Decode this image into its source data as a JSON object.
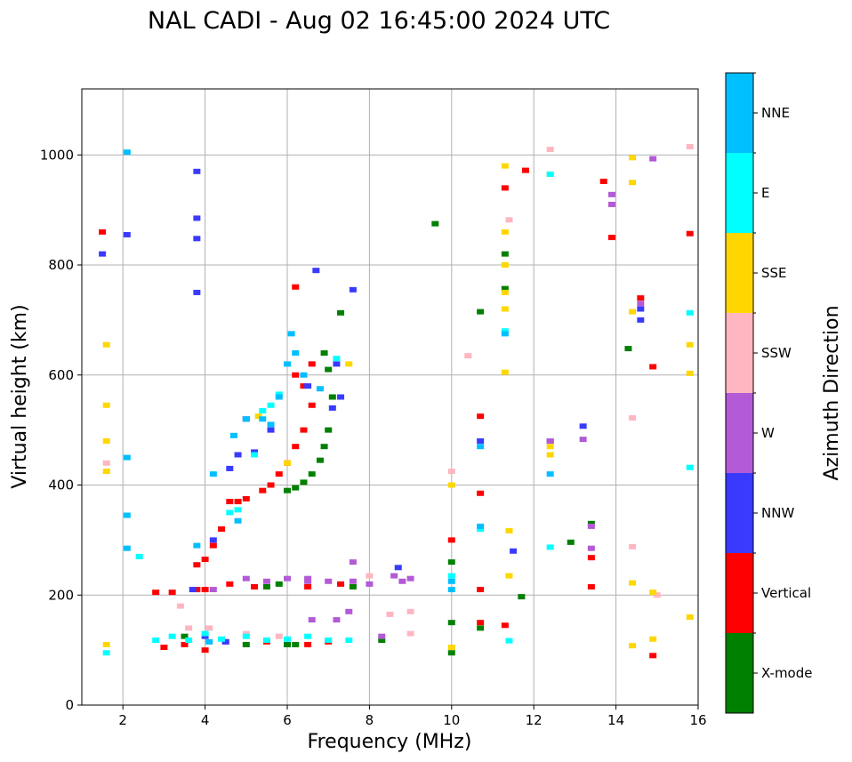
{
  "chart_data": {
    "type": "scatter",
    "title": "NAL CADI - Aug 02 16:45:00 2024 UTC",
    "xlabel": "Frequency (MHz)",
    "ylabel": "Virtual height (km)",
    "xlim": [
      1.0,
      16.0
    ],
    "ylim": [
      0,
      1120
    ],
    "xticks": [
      2,
      4,
      6,
      8,
      10,
      12,
      14,
      16
    ],
    "yticks": [
      0,
      200,
      400,
      600,
      800,
      1000
    ],
    "grid": true,
    "colorbar": {
      "title": "Azimuth Direction",
      "categories": [
        {
          "name": "X-mode",
          "color": "#008000"
        },
        {
          "name": "Vertical",
          "color": "#ff0000"
        },
        {
          "name": "NNW",
          "color": "#3a3aff"
        },
        {
          "name": "W",
          "color": "#b35ad6"
        },
        {
          "name": "SSW",
          "color": "#ffb6c1"
        },
        {
          "name": "SSE",
          "color": "#ffd700"
        },
        {
          "name": "E",
          "color": "#00ffff"
        },
        {
          "name": "NNE",
          "color": "#00bfff"
        }
      ]
    },
    "series": [
      {
        "name": "X-mode",
        "points": [
          [
            6.0,
            390
          ],
          [
            6.2,
            395
          ],
          [
            6.4,
            405
          ],
          [
            6.6,
            420
          ],
          [
            6.8,
            445
          ],
          [
            6.9,
            470
          ],
          [
            7.0,
            500
          ],
          [
            7.1,
            560
          ],
          [
            7.0,
            610
          ],
          [
            6.9,
            640
          ],
          [
            5.5,
            215
          ],
          [
            5.8,
            220
          ],
          [
            6.0,
            110
          ],
          [
            6.2,
            110
          ],
          [
            5.0,
            110
          ],
          [
            3.5,
            125
          ],
          [
            10.0,
            95
          ],
          [
            10.0,
            150
          ],
          [
            10.7,
            140
          ],
          [
            10.7,
            715
          ],
          [
            11.3,
            820
          ],
          [
            11.3,
            757
          ],
          [
            7.3,
            713
          ],
          [
            12.9,
            296
          ],
          [
            13.4,
            330
          ],
          [
            14.3,
            648
          ],
          [
            9.6,
            875
          ],
          [
            11.7,
            197
          ],
          [
            10.0,
            260
          ],
          [
            7.6,
            215
          ],
          [
            8.3,
            118
          ]
        ]
      },
      {
        "name": "Vertical",
        "points": [
          [
            3.2,
            205
          ],
          [
            2.8,
            205
          ],
          [
            3.8,
            210
          ],
          [
            4.0,
            210
          ],
          [
            3.8,
            255
          ],
          [
            4.0,
            265
          ],
          [
            4.2,
            290
          ],
          [
            4.4,
            320
          ],
          [
            4.6,
            370
          ],
          [
            4.8,
            370
          ],
          [
            5.0,
            375
          ],
          [
            5.4,
            390
          ],
          [
            5.6,
            400
          ],
          [
            5.8,
            420
          ],
          [
            6.0,
            440
          ],
          [
            6.2,
            470
          ],
          [
            6.4,
            500
          ],
          [
            6.6,
            545
          ],
          [
            6.4,
            580
          ],
          [
            6.2,
            600
          ],
          [
            6.6,
            620
          ],
          [
            6.2,
            760
          ],
          [
            3.0,
            105
          ],
          [
            3.5,
            110
          ],
          [
            4.0,
            100
          ],
          [
            4.5,
            115
          ],
          [
            5.5,
            115
          ],
          [
            6.5,
            110
          ],
          [
            7.0,
            115
          ],
          [
            4.6,
            220
          ],
          [
            5.2,
            215
          ],
          [
            6.5,
            215
          ],
          [
            7.3,
            220
          ],
          [
            10.7,
            525
          ],
          [
            10.7,
            385
          ],
          [
            10.7,
            210
          ],
          [
            10.7,
            150
          ],
          [
            11.3,
            940
          ],
          [
            11.3,
            145
          ],
          [
            11.8,
            972
          ],
          [
            13.4,
            215
          ],
          [
            13.4,
            268
          ],
          [
            13.7,
            952
          ],
          [
            13.9,
            850
          ],
          [
            14.6,
            740
          ],
          [
            14.9,
            615
          ],
          [
            14.9,
            90
          ],
          [
            15.8,
            857
          ],
          [
            1.5,
            860
          ],
          [
            10.0,
            300
          ]
        ]
      },
      {
        "name": "NNW",
        "points": [
          [
            3.8,
            750
          ],
          [
            3.8,
            885
          ],
          [
            3.8,
            970
          ],
          [
            3.8,
            848
          ],
          [
            1.5,
            820
          ],
          [
            2.1,
            855
          ],
          [
            4.6,
            430
          ],
          [
            4.8,
            455
          ],
          [
            5.2,
            460
          ],
          [
            5.6,
            500
          ],
          [
            5.0,
            520
          ],
          [
            6.5,
            580
          ],
          [
            7.1,
            540
          ],
          [
            7.2,
            620
          ],
          [
            7.3,
            560
          ],
          [
            6.7,
            790
          ],
          [
            7.6,
            755
          ],
          [
            4.2,
            300
          ],
          [
            4.0,
            125
          ],
          [
            3.7,
            210
          ],
          [
            8.7,
            250
          ],
          [
            10.7,
            480
          ],
          [
            11.5,
            280
          ],
          [
            12.4,
            480
          ],
          [
            13.2,
            507
          ],
          [
            14.6,
            720
          ],
          [
            14.6,
            700
          ],
          [
            4.5,
            115
          ]
        ]
      },
      {
        "name": "W",
        "points": [
          [
            5.0,
            230
          ],
          [
            5.5,
            225
          ],
          [
            6.0,
            230
          ],
          [
            6.5,
            230
          ],
          [
            7.0,
            225
          ],
          [
            7.6,
            225
          ],
          [
            8.0,
            220
          ],
          [
            8.6,
            235
          ],
          [
            8.8,
            225
          ],
          [
            9.0,
            230
          ],
          [
            7.6,
            260
          ],
          [
            6.6,
            155
          ],
          [
            7.2,
            155
          ],
          [
            7.5,
            170
          ],
          [
            13.4,
            325
          ],
          [
            13.4,
            285
          ],
          [
            13.2,
            483
          ],
          [
            13.9,
            928
          ],
          [
            13.9,
            910
          ],
          [
            14.9,
            993
          ],
          [
            14.6,
            730
          ],
          [
            12.4,
            480
          ],
          [
            8.3,
            125
          ],
          [
            4.2,
            210
          ],
          [
            6.5,
            225
          ]
        ]
      },
      {
        "name": "SSW",
        "points": [
          [
            3.4,
            180
          ],
          [
            3.6,
            140
          ],
          [
            4.1,
            140
          ],
          [
            5.0,
            130
          ],
          [
            8.5,
            165
          ],
          [
            9.0,
            170
          ],
          [
            9.0,
            130
          ],
          [
            10.4,
            635
          ],
          [
            11.4,
            882
          ],
          [
            12.4,
            1010
          ],
          [
            14.4,
            522
          ],
          [
            14.4,
            288
          ],
          [
            15.8,
            1015
          ],
          [
            15.0,
            200
          ],
          [
            5.8,
            125
          ],
          [
            8.0,
            235
          ],
          [
            1.6,
            440
          ],
          [
            10.0,
            425
          ]
        ]
      },
      {
        "name": "SSE",
        "points": [
          [
            1.6,
            545
          ],
          [
            1.6,
            480
          ],
          [
            1.6,
            425
          ],
          [
            1.6,
            655
          ],
          [
            1.6,
            110
          ],
          [
            11.3,
            980
          ],
          [
            11.3,
            860
          ],
          [
            11.3,
            800
          ],
          [
            11.3,
            750
          ],
          [
            11.3,
            720
          ],
          [
            11.3,
            605
          ],
          [
            11.4,
            317
          ],
          [
            11.4,
            235
          ],
          [
            12.4,
            965
          ],
          [
            12.4,
            470
          ],
          [
            12.4,
            455
          ],
          [
            14.4,
            995
          ],
          [
            14.4,
            950
          ],
          [
            14.4,
            715
          ],
          [
            14.4,
            222
          ],
          [
            14.4,
            108
          ],
          [
            14.9,
            205
          ],
          [
            14.9,
            120
          ],
          [
            15.8,
            655
          ],
          [
            15.8,
            603
          ],
          [
            15.8,
            160
          ],
          [
            10.0,
            400
          ],
          [
            10.0,
            105
          ],
          [
            5.3,
            525
          ],
          [
            6.0,
            440
          ],
          [
            7.5,
            620
          ]
        ]
      },
      {
        "name": "E",
        "points": [
          [
            2.4,
            270
          ],
          [
            2.8,
            118
          ],
          [
            3.2,
            125
          ],
          [
            3.6,
            118
          ],
          [
            4.0,
            130
          ],
          [
            4.4,
            120
          ],
          [
            5.0,
            125
          ],
          [
            5.5,
            118
          ],
          [
            6.0,
            120
          ],
          [
            6.5,
            125
          ],
          [
            7.0,
            118
          ],
          [
            7.5,
            118
          ],
          [
            4.6,
            350
          ],
          [
            4.8,
            355
          ],
          [
            5.4,
            535
          ],
          [
            5.6,
            545
          ],
          [
            5.8,
            565
          ],
          [
            11.3,
            680
          ],
          [
            12.4,
            965
          ],
          [
            12.4,
            287
          ],
          [
            11.4,
            117
          ],
          [
            15.8,
            713
          ],
          [
            15.8,
            432
          ],
          [
            10.7,
            320
          ],
          [
            10.0,
            235
          ],
          [
            1.6,
            95
          ],
          [
            7.2,
            630
          ],
          [
            5.2,
            455
          ]
        ]
      },
      {
        "name": "NNE",
        "points": [
          [
            2.1,
            1005
          ],
          [
            2.1,
            450
          ],
          [
            2.1,
            345
          ],
          [
            2.1,
            285
          ],
          [
            5.0,
            520
          ],
          [
            5.4,
            520
          ],
          [
            5.8,
            560
          ],
          [
            6.0,
            620
          ],
          [
            6.2,
            640
          ],
          [
            6.4,
            600
          ],
          [
            5.6,
            510
          ],
          [
            4.7,
            490
          ],
          [
            4.2,
            420
          ],
          [
            6.1,
            675
          ],
          [
            6.8,
            575
          ],
          [
            11.3,
            675
          ],
          [
            12.4,
            420
          ],
          [
            10.7,
            470
          ],
          [
            10.7,
            325
          ],
          [
            10.0,
            225
          ],
          [
            10.0,
            210
          ],
          [
            4.8,
            335
          ],
          [
            4.1,
            115
          ],
          [
            3.8,
            290
          ]
        ]
      }
    ]
  }
}
